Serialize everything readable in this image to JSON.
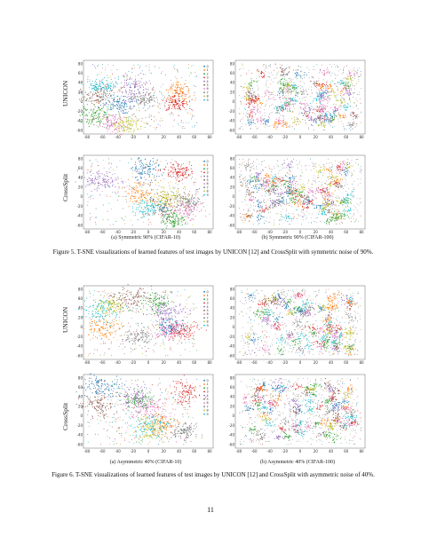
{
  "figures": [
    {
      "caption": "Figure 5. T-SNE visualizations of learned features of test images by UNICON [12] and CrossSplit with symmetric noise of 90%.",
      "rows": [
        "UNICON",
        "CrossSplit"
      ],
      "subcaptions": [
        "(a) Symmetric 90% (CIFAR-10)",
        "(b) Symmetric 90% (CIFAR-100)"
      ],
      "x_ticks": [
        "-80",
        "-60",
        "-40",
        "-20",
        "0",
        "20",
        "40",
        "60",
        "80"
      ],
      "y_ticks": [
        "80",
        "60",
        "40",
        "20",
        "0",
        "-20",
        "-40",
        "-60"
      ],
      "legend": [
        "0",
        "1",
        "2",
        "3",
        "4",
        "5",
        "6",
        "7",
        "8",
        "9"
      ]
    },
    {
      "caption": "Figure 6. T-SNE visualizations of learned features of test images by UNICON [12] and CrossSplit with asymmetric noise of 40%.",
      "rows": [
        "UNICON",
        "CrossSplit"
      ],
      "subcaptions": [
        "(a) Asymmetric 40% (CIFAR-10)",
        "(b) Asymmetric 40% (CIFAR-100)"
      ],
      "x_ticks": [
        "-80",
        "-60",
        "-40",
        "-20",
        "0",
        "20",
        "40",
        "60",
        "80"
      ],
      "y_ticks": [
        "80",
        "60",
        "40",
        "20",
        "0",
        "-20",
        "-40",
        "-60"
      ],
      "legend": [
        "0",
        "1",
        "2",
        "3",
        "4",
        "5",
        "6",
        "7",
        "8",
        "9"
      ]
    }
  ],
  "page_number": "11",
  "colors": [
    "#1f77b4",
    "#ff7f0e",
    "#2ca02c",
    "#d62728",
    "#9467bd",
    "#8c564b",
    "#e377c2",
    "#7f7f7f",
    "#bcbd22",
    "#17becf"
  ]
}
